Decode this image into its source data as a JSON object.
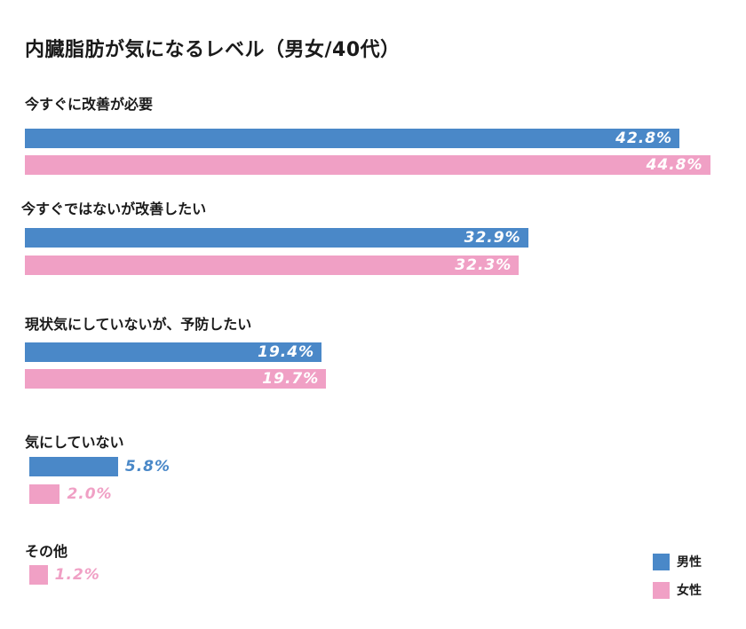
{
  "chart_data": {
    "type": "bar",
    "orientation": "horizontal",
    "title": "内臓脂肪が気になるレベル（男女/40代）",
    "categories": [
      "今すぐに改善が必要",
      "今すぐではないが改善したい",
      "現状気にしていないが、予防したい",
      "気にしていない",
      "その他"
    ],
    "series": [
      {
        "name": "男性",
        "color": "#4a88c8",
        "values": [
          42.8,
          32.9,
          19.4,
          5.8,
          null
        ],
        "labels": [
          "42.8%",
          "32.9%",
          "19.4%",
          "5.8%",
          ""
        ]
      },
      {
        "name": "女性",
        "color": "#f0a0c5",
        "values": [
          44.8,
          32.3,
          19.7,
          2.0,
          1.2
        ],
        "labels": [
          "44.8%",
          "32.3%",
          "19.7%",
          "2.0%",
          "1.2%"
        ]
      }
    ],
    "xlim": [
      0,
      45
    ],
    "grid": false,
    "legend_position": "bottom-right"
  }
}
